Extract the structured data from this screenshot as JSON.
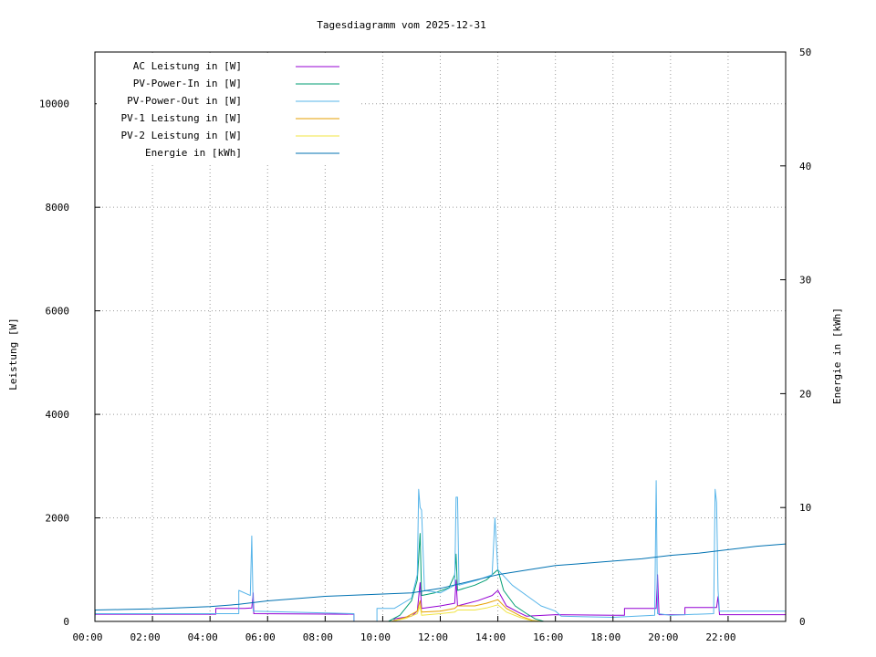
{
  "chart_data": {
    "type": "line",
    "title": "Tagesdiagramm vom 2025-12-31",
    "xlabel": "",
    "ylabel": "Leistung [W]",
    "y2label": "Energie in [kWh]",
    "x_unit": "hours",
    "xlim": [
      0,
      24
    ],
    "ylim": [
      0,
      11000
    ],
    "y2lim": [
      0,
      50
    ],
    "x_ticks": [
      {
        "v": 0,
        "label": "00:00"
      },
      {
        "v": 2,
        "label": "02:00"
      },
      {
        "v": 4,
        "label": "04:00"
      },
      {
        "v": 6,
        "label": "06:00"
      },
      {
        "v": 8,
        "label": "08:00"
      },
      {
        "v": 10,
        "label": "10:00"
      },
      {
        "v": 12,
        "label": "12:00"
      },
      {
        "v": 14,
        "label": "14:00"
      },
      {
        "v": 16,
        "label": "16:00"
      },
      {
        "v": 18,
        "label": "18:00"
      },
      {
        "v": 20,
        "label": "20:00"
      },
      {
        "v": 22,
        "label": "22:00"
      }
    ],
    "y_ticks": [
      0,
      2000,
      4000,
      6000,
      8000,
      10000
    ],
    "y2_ticks": [
      0,
      10,
      20,
      30,
      40,
      50
    ],
    "grid": true,
    "legend_position": "top-left",
    "series": [
      {
        "name": "AC Leistung in [W]",
        "axis": "y",
        "color": "#9400d3",
        "points": [
          [
            0,
            140
          ],
          [
            4.2,
            140
          ],
          [
            4.2,
            250
          ],
          [
            5.2,
            250
          ],
          [
            5.45,
            260
          ],
          [
            5.5,
            550
          ],
          [
            5.52,
            150
          ],
          [
            9.0,
            140
          ],
          [
            9.0,
            0
          ],
          [
            10.4,
            0
          ],
          [
            10.4,
            50
          ],
          [
            11.0,
            100
          ],
          [
            11.2,
            200
          ],
          [
            11.3,
            750
          ],
          [
            11.35,
            250
          ],
          [
            12.0,
            300
          ],
          [
            12.5,
            350
          ],
          [
            12.55,
            800
          ],
          [
            12.6,
            300
          ],
          [
            13.3,
            400
          ],
          [
            13.8,
            500
          ],
          [
            14.0,
            600
          ],
          [
            14.3,
            300
          ],
          [
            14.7,
            180
          ],
          [
            15.0,
            100
          ],
          [
            16.0,
            130
          ],
          [
            18.0,
            120
          ],
          [
            18.4,
            120
          ],
          [
            18.4,
            250
          ],
          [
            19.5,
            250
          ],
          [
            19.55,
            900
          ],
          [
            19.6,
            130
          ],
          [
            20.5,
            130
          ],
          [
            20.5,
            270
          ],
          [
            21.6,
            270
          ],
          [
            21.65,
            480
          ],
          [
            21.7,
            130
          ],
          [
            24,
            130
          ]
        ]
      },
      {
        "name": "PV-Power-In in [W]",
        "axis": "y",
        "color": "#009e73",
        "points": [
          [
            0,
            0
          ],
          [
            10.2,
            0
          ],
          [
            10.6,
            120
          ],
          [
            11.0,
            400
          ],
          [
            11.2,
            800
          ],
          [
            11.3,
            1700
          ],
          [
            11.35,
            500
          ],
          [
            11.8,
            550
          ],
          [
            12.3,
            650
          ],
          [
            12.5,
            900
          ],
          [
            12.55,
            1300
          ],
          [
            12.6,
            600
          ],
          [
            13.2,
            700
          ],
          [
            13.6,
            800
          ],
          [
            13.8,
            900
          ],
          [
            14.0,
            1000
          ],
          [
            14.2,
            600
          ],
          [
            14.6,
            300
          ],
          [
            15.0,
            150
          ],
          [
            15.3,
            50
          ],
          [
            15.6,
            0
          ],
          [
            24,
            0
          ]
        ]
      },
      {
        "name": "PV-Power-Out in [W]",
        "axis": "y",
        "color": "#56b4e9",
        "points": [
          [
            0,
            150
          ],
          [
            5.0,
            150
          ],
          [
            5.0,
            600
          ],
          [
            5.4,
            500
          ],
          [
            5.45,
            1650
          ],
          [
            5.5,
            200
          ],
          [
            9.0,
            150
          ],
          [
            9.0,
            0
          ],
          [
            9.8,
            0
          ],
          [
            9.8,
            250
          ],
          [
            10.4,
            250
          ],
          [
            11.0,
            450
          ],
          [
            11.2,
            900
          ],
          [
            11.25,
            2550
          ],
          [
            11.3,
            2200
          ],
          [
            11.35,
            2150
          ],
          [
            11.45,
            600
          ],
          [
            12.0,
            550
          ],
          [
            12.5,
            700
          ],
          [
            12.55,
            2400
          ],
          [
            12.6,
            2400
          ],
          [
            12.65,
            700
          ],
          [
            13.3,
            800
          ],
          [
            13.8,
            900
          ],
          [
            13.9,
            2000
          ],
          [
            14.0,
            1000
          ],
          [
            14.5,
            700
          ],
          [
            15.0,
            500
          ],
          [
            15.5,
            300
          ],
          [
            16.0,
            200
          ],
          [
            16.2,
            100
          ],
          [
            18.0,
            80
          ],
          [
            19.45,
            120
          ],
          [
            19.5,
            2720
          ],
          [
            19.55,
            150
          ],
          [
            20.0,
            120
          ],
          [
            21.5,
            150
          ],
          [
            21.55,
            2550
          ],
          [
            21.6,
            2300
          ],
          [
            21.65,
            600
          ],
          [
            21.7,
            200
          ],
          [
            24,
            200
          ]
        ]
      },
      {
        "name": "PV-1 Leistung in [W]",
        "axis": "y",
        "color": "#e69f00",
        "points": [
          [
            0,
            0
          ],
          [
            10.3,
            0
          ],
          [
            10.8,
            80
          ],
          [
            11.2,
            200
          ],
          [
            11.3,
            400
          ],
          [
            11.35,
            180
          ],
          [
            12.0,
            200
          ],
          [
            12.5,
            250
          ],
          [
            12.6,
            300
          ],
          [
            13.2,
            300
          ],
          [
            13.6,
            350
          ],
          [
            14.0,
            420
          ],
          [
            14.3,
            250
          ],
          [
            14.8,
            100
          ],
          [
            15.2,
            20
          ],
          [
            15.5,
            0
          ],
          [
            24,
            0
          ]
        ]
      },
      {
        "name": "PV-2 Leistung in [W]",
        "axis": "y",
        "color": "#f0e442",
        "points": [
          [
            0,
            0
          ],
          [
            10.3,
            0
          ],
          [
            10.8,
            60
          ],
          [
            11.2,
            150
          ],
          [
            11.3,
            300
          ],
          [
            11.35,
            120
          ],
          [
            12.0,
            150
          ],
          [
            12.5,
            180
          ],
          [
            12.6,
            220
          ],
          [
            13.2,
            220
          ],
          [
            13.6,
            260
          ],
          [
            14.0,
            320
          ],
          [
            14.3,
            180
          ],
          [
            14.8,
            70
          ],
          [
            15.2,
            10
          ],
          [
            15.5,
            0
          ],
          [
            24,
            0
          ]
        ]
      },
      {
        "name": "Energie in [kWh]",
        "axis": "y2",
        "color": "#0072b2",
        "points": [
          [
            0,
            0
          ],
          [
            0.01,
            1.0
          ],
          [
            1,
            1.05
          ],
          [
            2,
            1.1
          ],
          [
            3,
            1.2
          ],
          [
            4,
            1.3
          ],
          [
            5,
            1.5
          ],
          [
            6,
            1.8
          ],
          [
            7,
            2.0
          ],
          [
            8,
            2.2
          ],
          [
            9,
            2.3
          ],
          [
            10,
            2.4
          ],
          [
            11,
            2.5
          ],
          [
            12,
            2.9
          ],
          [
            13,
            3.5
          ],
          [
            14,
            4.1
          ],
          [
            15,
            4.5
          ],
          [
            16,
            4.9
          ],
          [
            17,
            5.1
          ],
          [
            18,
            5.3
          ],
          [
            19,
            5.5
          ],
          [
            20,
            5.8
          ],
          [
            21,
            6.0
          ],
          [
            22,
            6.3
          ],
          [
            23,
            6.6
          ],
          [
            24,
            6.8
          ]
        ]
      }
    ]
  }
}
